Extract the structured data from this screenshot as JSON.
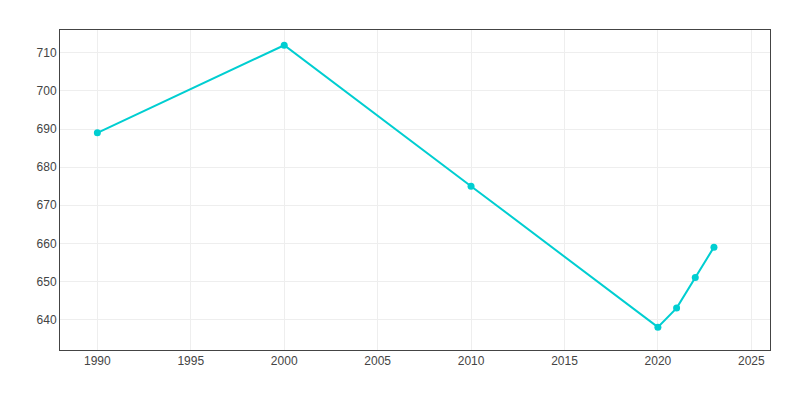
{
  "chart_data": {
    "type": "line",
    "x": [
      1990,
      2000,
      2010,
      2020,
      2021,
      2022,
      2023
    ],
    "values": [
      689,
      712,
      675,
      638,
      643,
      651,
      659
    ],
    "color": "#00CED1",
    "marker": "circle",
    "xlim": [
      1988,
      2026
    ],
    "xticks": [
      1990,
      1995,
      2000,
      2005,
      2010,
      2015,
      2020,
      2025
    ],
    "ylim": [
      632,
      716
    ],
    "yticks": [
      640,
      650,
      660,
      670,
      680,
      690,
      700,
      710
    ],
    "grid": true
  }
}
